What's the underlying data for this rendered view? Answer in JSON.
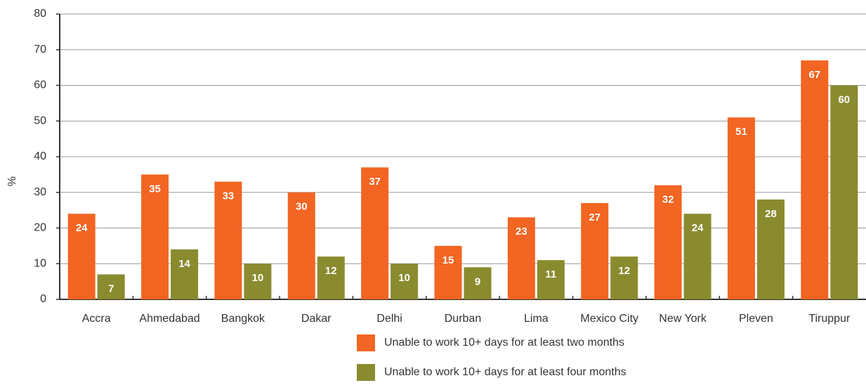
{
  "chart_data": {
    "type": "bar",
    "y_label": "%",
    "categories": [
      "Accra",
      "Ahmedabad",
      "Bangkok",
      "Dakar",
      "Delhi",
      "Durban",
      "Lima",
      "Mexico City",
      "New York",
      "Pleven",
      "Tiruppur"
    ],
    "series": [
      {
        "name": "Unable to work 10+ days for at least two months",
        "color": "#f26522",
        "values": [
          24,
          35,
          33,
          30,
          37,
          15,
          23,
          27,
          32,
          51,
          67
        ]
      },
      {
        "name": "Unable to work 10+ days for at least four months",
        "color": "#8a8b2f",
        "values": [
          7,
          14,
          10,
          12,
          10,
          9,
          11,
          12,
          24,
          28,
          60
        ]
      }
    ],
    "ylim": [
      0,
      80
    ],
    "yticks": [
      0,
      10,
      20,
      30,
      40,
      50,
      60,
      70,
      80
    ],
    "grid": true
  }
}
